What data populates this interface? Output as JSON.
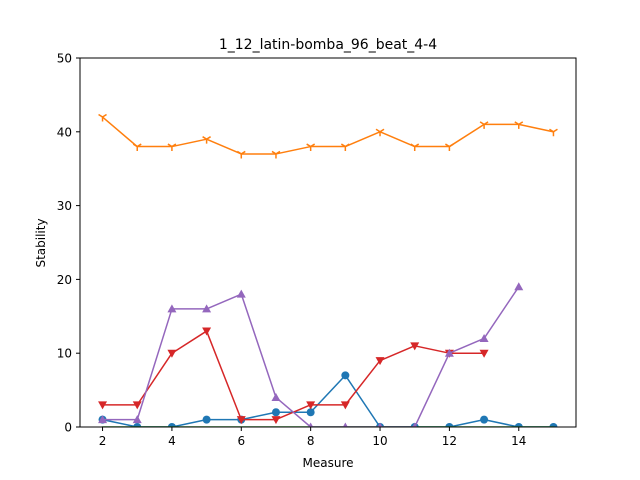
{
  "chart_data": {
    "type": "line",
    "title": "1_12_latin-bomba_96_beat_4-4",
    "xlabel": "Measure",
    "ylabel": "Stability",
    "xlim": [
      1.35,
      15.65
    ],
    "ylim": [
      0,
      50
    ],
    "xticks": [
      2,
      4,
      6,
      8,
      10,
      12,
      14
    ],
    "yticks": [
      0,
      10,
      20,
      30,
      40,
      50
    ],
    "grid": false,
    "legend": "none",
    "series": [
      {
        "color": "#1f77b4",
        "marker": "circle",
        "x": [
          2,
          3,
          4,
          5,
          6,
          7,
          8,
          9,
          10,
          11,
          12,
          13,
          14,
          15
        ],
        "y": [
          1,
          0,
          0,
          1,
          1,
          2,
          2,
          7,
          0,
          0,
          0,
          1,
          0,
          0
        ]
      },
      {
        "color": "#ff7f0e",
        "marker": "tri_down",
        "x": [
          2,
          3,
          4,
          5,
          6,
          7,
          8,
          9,
          10,
          11,
          12,
          13,
          14,
          15
        ],
        "y": [
          42,
          38,
          38,
          39,
          37,
          37,
          38,
          38,
          40,
          38,
          38,
          41,
          41,
          40
        ]
      },
      {
        "color": "#2ca02c",
        "marker": "none",
        "x": [
          2,
          3,
          4,
          5,
          6,
          7,
          8,
          9,
          10,
          11,
          12,
          13,
          14,
          15
        ],
        "y": [
          0,
          0,
          0,
          0,
          0,
          0,
          0,
          0,
          0,
          0,
          0,
          0,
          0,
          0
        ]
      },
      {
        "color": "#d62728",
        "marker": "triangle-down",
        "x": [
          2,
          3,
          4,
          5,
          6,
          7,
          8,
          9,
          10,
          11,
          12,
          13
        ],
        "y": [
          3,
          3,
          10,
          13,
          1,
          1,
          3,
          3,
          9,
          11,
          10,
          10
        ]
      },
      {
        "color": "#9467bd",
        "marker": "triangle-up",
        "x": [
          2,
          3,
          4,
          5,
          6,
          7,
          8,
          9,
          10,
          11,
          12,
          13,
          14
        ],
        "y": [
          1,
          1,
          16,
          16,
          18,
          4,
          0,
          0,
          0,
          0,
          10,
          12,
          19
        ]
      }
    ]
  }
}
